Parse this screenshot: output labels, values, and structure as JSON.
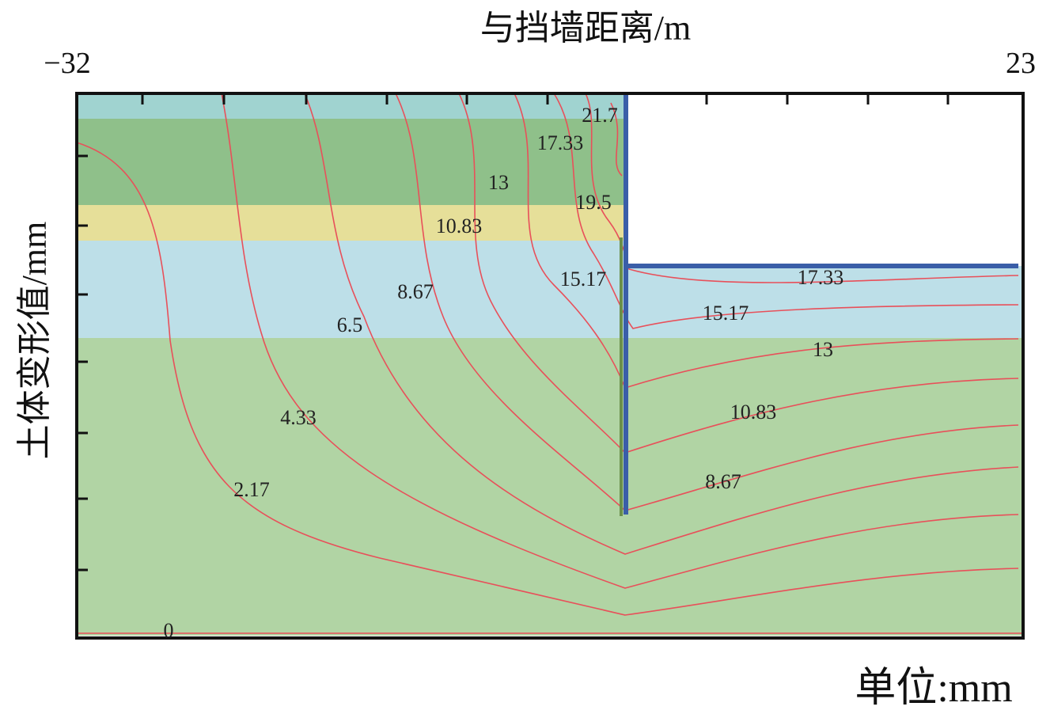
{
  "header": {
    "title": "与挡墙距离/m"
  },
  "axis": {
    "left_end": "−32",
    "right_end": "23",
    "y_label": "土体变形值/mm"
  },
  "unit": "单位:mm",
  "contour_labels": [
    "21.7",
    "17.33",
    "13",
    "19.5",
    "10.83",
    "15.17",
    "8.67",
    "6.5",
    "4.33",
    "2.17",
    "0",
    "17.33",
    "15.17",
    "13",
    "10.83",
    "8.67"
  ]
}
